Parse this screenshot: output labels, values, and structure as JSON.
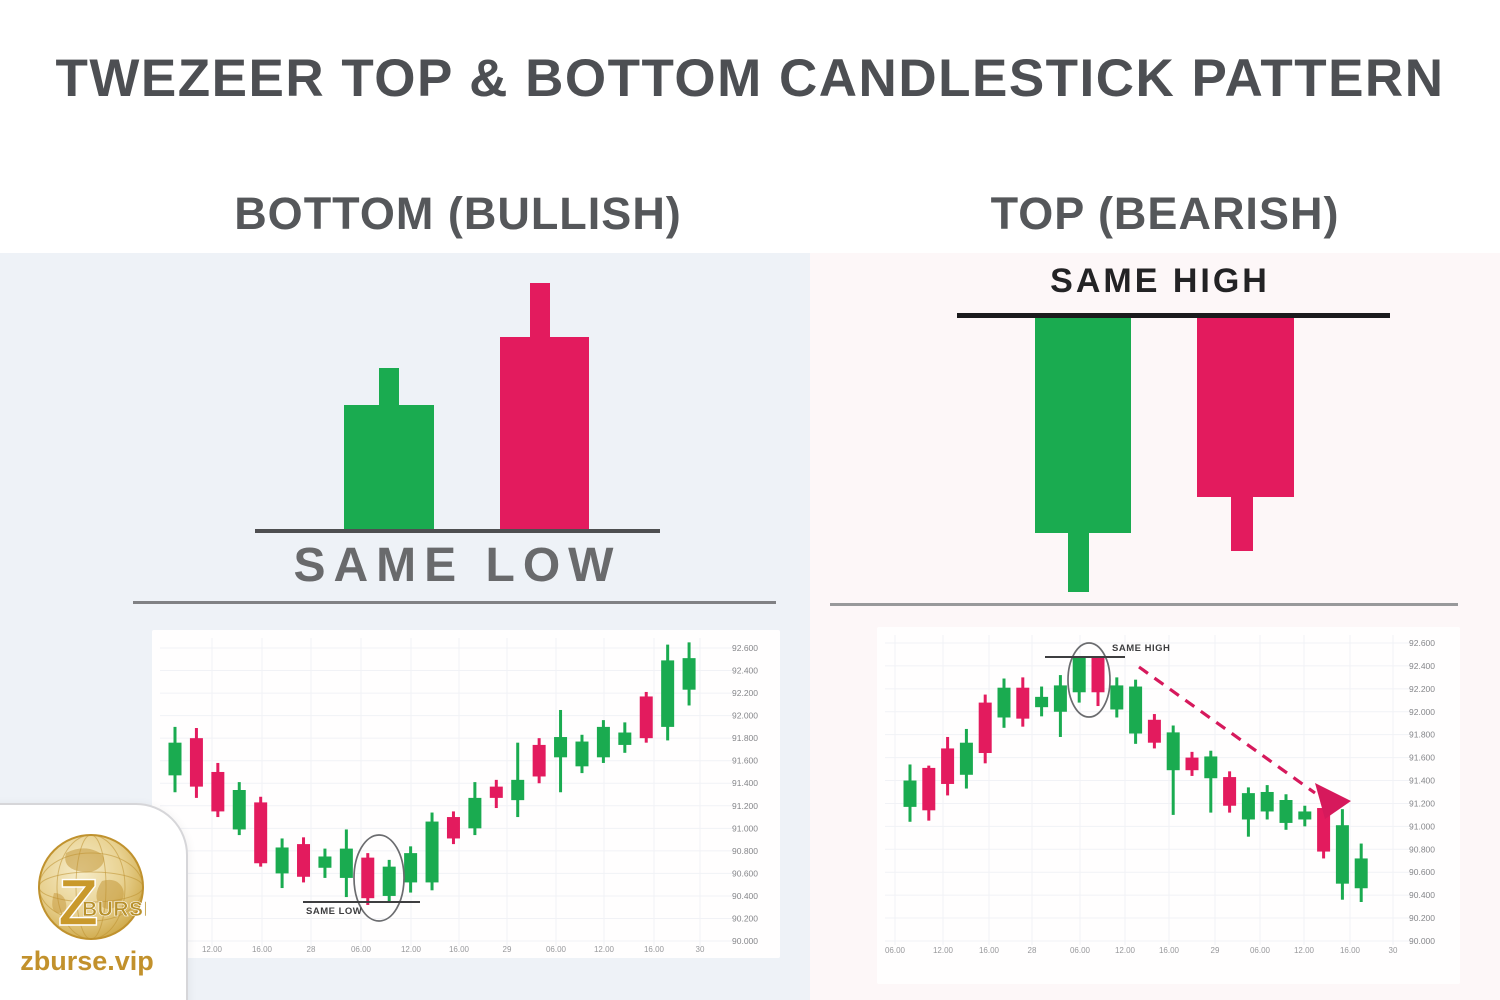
{
  "title": "TWEZEER TOP & BOTTOM CANDLESTICK PATTERN",
  "colors": {
    "bull": "#1aab50",
    "bear": "#e31b5e",
    "arrow": "#d6195c",
    "left_panel_bg": "#eef2f7",
    "right_panel_bg": "#fdf7f8"
  },
  "panels": {
    "left": {
      "header": "BOTTOM (BULLISH)",
      "diagram_label": "SAME LOW"
    },
    "right": {
      "header": "TOP (BEARISH)",
      "diagram_label": "SAME HIGH"
    }
  },
  "logo": {
    "monogram": "Z",
    "brand": "BURSE",
    "site": "zburse.vip"
  },
  "chart_data": [
    {
      "type": "candlestick",
      "panel": "left",
      "y_range": [
        90.0,
        92.6
      ],
      "y_ticks": [
        "92.600",
        "92.400",
        "92.200",
        "92.000",
        "91.800",
        "91.600",
        "91.400",
        "91.200",
        "91.000",
        "90.800",
        "90.600",
        "90.400",
        "90.200",
        "90.000"
      ],
      "x_ticks": [
        "12.00",
        "16.00",
        "28",
        "06.00",
        "12.00",
        "16.00",
        "29",
        "06.00",
        "12.00",
        "16.00",
        "30"
      ],
      "annotation": {
        "label": "SAME LOW",
        "circled_candles": [
          10,
          11
        ],
        "level": 90.36
      },
      "candles": [
        {
          "o": 91.47,
          "h": 91.9,
          "l": 91.32,
          "c": 91.76
        },
        {
          "o": 91.8,
          "h": 91.89,
          "l": 91.27,
          "c": 91.37
        },
        {
          "o": 91.5,
          "h": 91.58,
          "l": 91.1,
          "c": 91.15
        },
        {
          "o": 90.99,
          "h": 91.41,
          "l": 90.94,
          "c": 91.34
        },
        {
          "o": 91.23,
          "h": 91.28,
          "l": 90.66,
          "c": 90.69
        },
        {
          "o": 90.6,
          "h": 90.91,
          "l": 90.47,
          "c": 90.83
        },
        {
          "o": 90.86,
          "h": 90.92,
          "l": 90.52,
          "c": 90.57
        },
        {
          "o": 90.65,
          "h": 90.82,
          "l": 90.56,
          "c": 90.75
        },
        {
          "o": 90.56,
          "h": 90.99,
          "l": 90.39,
          "c": 90.82
        },
        {
          "o": 90.74,
          "h": 90.78,
          "l": 90.32,
          "c": 90.38
        },
        {
          "o": 90.4,
          "h": 90.72,
          "l": 90.34,
          "c": 90.66
        },
        {
          "o": 90.52,
          "h": 90.84,
          "l": 90.43,
          "c": 90.78
        },
        {
          "o": 90.52,
          "h": 91.14,
          "l": 90.45,
          "c": 91.06
        },
        {
          "o": 91.1,
          "h": 91.15,
          "l": 90.86,
          "c": 90.91
        },
        {
          "o": 91.0,
          "h": 91.41,
          "l": 90.94,
          "c": 91.27
        },
        {
          "o": 91.37,
          "h": 91.43,
          "l": 91.18,
          "c": 91.27
        },
        {
          "o": 91.25,
          "h": 91.76,
          "l": 91.1,
          "c": 91.43
        },
        {
          "o": 91.74,
          "h": 91.8,
          "l": 91.4,
          "c": 91.46
        },
        {
          "o": 91.63,
          "h": 92.05,
          "l": 91.32,
          "c": 91.81
        },
        {
          "o": 91.55,
          "h": 91.83,
          "l": 91.49,
          "c": 91.77
        },
        {
          "o": 91.63,
          "h": 91.96,
          "l": 91.58,
          "c": 91.9
        },
        {
          "o": 91.74,
          "h": 91.94,
          "l": 91.67,
          "c": 91.85
        },
        {
          "o": 92.17,
          "h": 92.21,
          "l": 91.76,
          "c": 91.8
        },
        {
          "o": 91.9,
          "h": 92.63,
          "l": 91.78,
          "c": 92.49
        },
        {
          "o": 92.23,
          "h": 92.65,
          "l": 92.09,
          "c": 92.51
        }
      ]
    },
    {
      "type": "candlestick",
      "panel": "right",
      "y_range": [
        90.0,
        92.6
      ],
      "y_ticks": [
        "92.600",
        "92.400",
        "92.200",
        "92.000",
        "91.800",
        "91.600",
        "91.400",
        "91.200",
        "91.000",
        "90.800",
        "90.600",
        "90.400",
        "90.200",
        "90.000"
      ],
      "x_ticks": [
        "06.00",
        "12.00",
        "16.00",
        "28",
        "06.00",
        "12.00",
        "16.00",
        "29",
        "06.00",
        "12.00",
        "16.00",
        "30"
      ],
      "annotation": {
        "label": "SAME HIGH",
        "circled_candles": [
          10,
          11
        ],
        "level": 92.48,
        "trend_arrow": "down-right"
      },
      "candles": [
        {
          "o": 91.17,
          "h": 91.54,
          "l": 91.04,
          "c": 91.4
        },
        {
          "o": 91.51,
          "h": 91.53,
          "l": 91.05,
          "c": 91.14
        },
        {
          "o": 91.68,
          "h": 91.78,
          "l": 91.27,
          "c": 91.37
        },
        {
          "o": 91.45,
          "h": 91.85,
          "l": 91.33,
          "c": 91.73
        },
        {
          "o": 92.08,
          "h": 92.15,
          "l": 91.55,
          "c": 91.64
        },
        {
          "o": 91.95,
          "h": 92.29,
          "l": 91.86,
          "c": 92.21
        },
        {
          "o": 92.21,
          "h": 92.3,
          "l": 91.87,
          "c": 91.94
        },
        {
          "o": 92.04,
          "h": 92.22,
          "l": 91.96,
          "c": 92.13
        },
        {
          "o": 92.0,
          "h": 92.32,
          "l": 91.78,
          "c": 92.23
        },
        {
          "o": 92.17,
          "h": 92.48,
          "l": 92.08,
          "c": 92.47
        },
        {
          "o": 92.47,
          "h": 92.48,
          "l": 92.05,
          "c": 92.17
        },
        {
          "o": 92.02,
          "h": 92.3,
          "l": 91.95,
          "c": 92.23
        },
        {
          "o": 91.81,
          "h": 92.28,
          "l": 91.72,
          "c": 92.22
        },
        {
          "o": 91.93,
          "h": 91.98,
          "l": 91.68,
          "c": 91.73
        },
        {
          "o": 91.49,
          "h": 91.88,
          "l": 91.1,
          "c": 91.82
        },
        {
          "o": 91.6,
          "h": 91.65,
          "l": 91.44,
          "c": 91.49
        },
        {
          "o": 91.42,
          "h": 91.66,
          "l": 91.12,
          "c": 91.61
        },
        {
          "o": 91.43,
          "h": 91.48,
          "l": 91.12,
          "c": 91.18
        },
        {
          "o": 91.06,
          "h": 91.34,
          "l": 90.91,
          "c": 91.29
        },
        {
          "o": 91.13,
          "h": 91.36,
          "l": 91.06,
          "c": 91.3
        },
        {
          "o": 91.03,
          "h": 91.28,
          "l": 90.97,
          "c": 91.23
        },
        {
          "o": 91.06,
          "h": 91.18,
          "l": 91.0,
          "c": 91.13
        },
        {
          "o": 91.16,
          "h": 91.2,
          "l": 90.72,
          "c": 90.78
        },
        {
          "o": 90.5,
          "h": 91.15,
          "l": 90.36,
          "c": 91.01
        },
        {
          "o": 90.46,
          "h": 90.85,
          "l": 90.34,
          "c": 90.72
        }
      ]
    }
  ]
}
